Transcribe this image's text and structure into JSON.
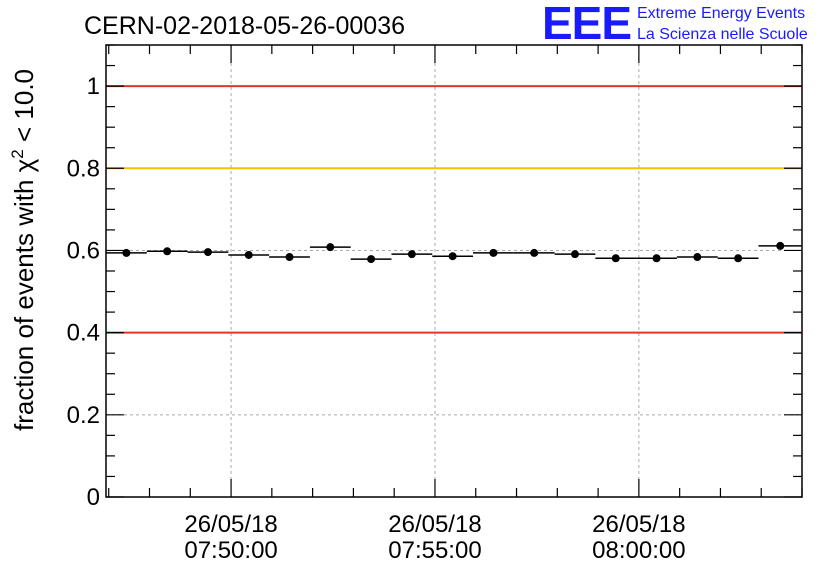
{
  "header": {
    "run_title": "CERN-02-2018-05-26-00036",
    "logo_mark": "EEE",
    "logo_line1": "Extreme Energy Events",
    "logo_line2": "La Scienza nelle Scuole"
  },
  "chart_data": {
    "type": "scatter",
    "title": "CERN-02-2018-05-26-00036",
    "xlabel": "",
    "ylabel_prefix": "fraction of events with ",
    "ylabel_symbol": "χ",
    "ylabel_exponent": "2",
    "ylabel_suffix": " < 10.0",
    "x_unit": "time (HH:MM)",
    "xlim": [
      "07:46:56",
      "08:04:00"
    ],
    "ylim": [
      0,
      1.1
    ],
    "y_ticks": [
      {
        "value": 0,
        "label": "0"
      },
      {
        "value": 0.2,
        "label": "0.2"
      },
      {
        "value": 0.4,
        "label": "0.4"
      },
      {
        "value": 0.6,
        "label": "0.6"
      },
      {
        "value": 0.8,
        "label": "0.8"
      },
      {
        "value": 1.0,
        "label": "1"
      }
    ],
    "x_ticks": [
      {
        "time": "07:50:00",
        "date_label": "26/05/18",
        "time_label": "07:50:00"
      },
      {
        "time": "07:55:00",
        "date_label": "26/05/18",
        "time_label": "07:55:00"
      },
      {
        "time": "08:00:00",
        "date_label": "26/05/18",
        "time_label": "08:00:00"
      }
    ],
    "grid": true,
    "reference_lines": [
      {
        "y": 1.0,
        "color": "#e8322b"
      },
      {
        "y": 0.8,
        "color": "#f5c000"
      },
      {
        "y": 0.4,
        "color": "#e8322b"
      }
    ],
    "series": [
      {
        "marker_color": "#000000",
        "points": [
          {
            "x_start": "07:46:56",
            "x_end": "07:47:56",
            "y": 0.594
          },
          {
            "x_start": "07:47:56",
            "x_end": "07:48:56",
            "y": 0.598
          },
          {
            "x_start": "07:48:56",
            "x_end": "07:49:56",
            "y": 0.596
          },
          {
            "x_start": "07:49:56",
            "x_end": "07:50:56",
            "y": 0.589
          },
          {
            "x_start": "07:50:56",
            "x_end": "07:51:56",
            "y": 0.584
          },
          {
            "x_start": "07:51:56",
            "x_end": "07:52:56",
            "y": 0.608
          },
          {
            "x_start": "07:52:56",
            "x_end": "07:53:56",
            "y": 0.579
          },
          {
            "x_start": "07:53:56",
            "x_end": "07:54:56",
            "y": 0.591
          },
          {
            "x_start": "07:54:56",
            "x_end": "07:55:56",
            "y": 0.586
          },
          {
            "x_start": "07:55:56",
            "x_end": "07:56:56",
            "y": 0.594
          },
          {
            "x_start": "07:56:56",
            "x_end": "07:57:56",
            "y": 0.594
          },
          {
            "x_start": "07:57:56",
            "x_end": "07:58:56",
            "y": 0.591
          },
          {
            "x_start": "07:58:56",
            "x_end": "07:59:56",
            "y": 0.581
          },
          {
            "x_start": "07:59:56",
            "x_end": "08:00:56",
            "y": 0.581
          },
          {
            "x_start": "08:00:56",
            "x_end": "08:01:56",
            "y": 0.584
          },
          {
            "x_start": "08:01:56",
            "x_end": "08:02:56",
            "y": 0.581
          },
          {
            "x_start": "08:02:56",
            "x_end": "08:04:00",
            "y": 0.611
          }
        ]
      }
    ]
  }
}
